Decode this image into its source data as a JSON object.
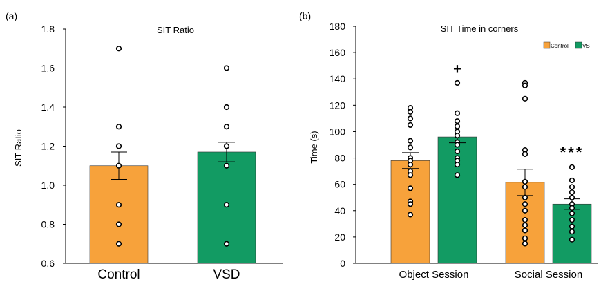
{
  "figure": {
    "background": "#ffffff",
    "bar_stroke": "#333333",
    "point_fill": "#ffffff",
    "point_stroke": "#000000"
  },
  "chart_data": [
    {
      "panel_label": "(a)",
      "type": "bar",
      "title": "SIT Ratio",
      "ylabel": "SIT Ratio",
      "xlabel": "",
      "ylim": [
        0.6,
        1.8
      ],
      "yticks": [
        "0.6",
        "0.8",
        "1.0",
        "1.2",
        "1.4",
        "1.6",
        "1.8"
      ],
      "grid": false,
      "categories": [
        "Control",
        "VSD"
      ],
      "colors": [
        "#f7a23b",
        "#129b63"
      ],
      "values": [
        1.1,
        1.17
      ],
      "errors": [
        0.07,
        0.05
      ],
      "points": [
        [
          1.7,
          1.3,
          1.2,
          1.1,
          0.9,
          0.8,
          0.7
        ],
        [
          1.6,
          1.4,
          1.3,
          1.2,
          1.1,
          0.9,
          0.7
        ]
      ]
    },
    {
      "panel_label": "(b)",
      "type": "bar",
      "title": "SIT Time in corners",
      "ylabel": "Time (s)",
      "xlabel": "",
      "ylim": [
        0,
        180
      ],
      "yticks": [
        "0",
        "20",
        "40",
        "60",
        "80",
        "100",
        "120",
        "140",
        "160",
        "180"
      ],
      "grid": false,
      "legend": "top-right",
      "categories": [
        "Object Session",
        "Social Session"
      ],
      "series": [
        {
          "name": "Control",
          "color": "#f7a23b",
          "values": [
            78,
            61.5
          ],
          "errors": [
            6,
            10
          ],
          "points": [
            [
              118,
              115,
              110,
              105,
              93,
              88,
              80,
              78,
              75,
              70,
              67,
              57,
              47,
              45,
              37
            ],
            [
              137,
              135,
              125,
              86,
              83,
              62,
              58,
              50,
              45,
              40,
              33,
              29,
              25,
              19,
              15
            ]
          ],
          "markers": [
            "",
            ""
          ]
        },
        {
          "name": "VS",
          "color": "#129b63",
          "values": [
            96,
            45
          ],
          "errors": [
            4.5,
            4
          ],
          "points": [
            [
              137,
              114,
              108,
              104,
              100,
              97,
              92,
              90,
              85,
              80,
              78,
              75,
              67
            ],
            [
              73,
              63,
              58,
              54,
              50,
              45,
              42,
              38,
              33,
              28,
              24,
              18
            ]
          ],
          "markers": [
            "+",
            "***"
          ]
        }
      ]
    }
  ]
}
